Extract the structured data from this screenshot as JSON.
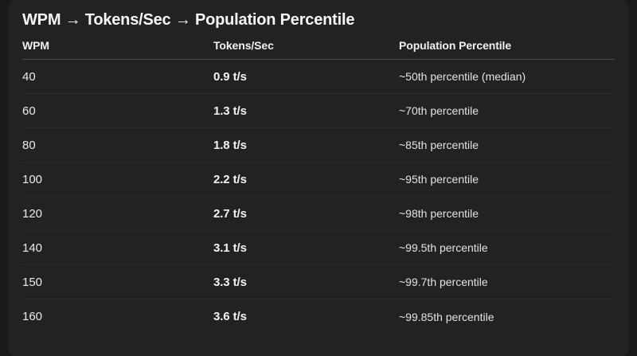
{
  "title": "WPM → Tokens/Sec → Population Percentile",
  "chart_data": {
    "type": "table",
    "title": "WPM → Tokens/Sec → Population Percentile",
    "columns": [
      "WPM",
      "Tokens/Sec",
      "Population Percentile"
    ],
    "rows": [
      [
        "40",
        "0.9 t/s",
        "~50th percentile (median)"
      ],
      [
        "60",
        "1.3 t/s",
        "~70th percentile"
      ],
      [
        "80",
        "1.8 t/s",
        "~85th percentile"
      ],
      [
        "100",
        "2.2 t/s",
        "~95th percentile"
      ],
      [
        "120",
        "2.7 t/s",
        "~98th percentile"
      ],
      [
        "140",
        "3.1 t/s",
        "~99.5th percentile"
      ],
      [
        "150",
        "3.3 t/s",
        "~99.7th percentile"
      ],
      [
        "160",
        "3.6 t/s",
        "~99.85th percentile"
      ]
    ],
    "wpm_values": [
      40,
      60,
      80,
      100,
      120,
      140,
      150,
      160
    ],
    "tokens_per_sec_values": [
      0.9,
      1.3,
      1.8,
      2.2,
      2.7,
      3.1,
      3.3,
      3.6
    ],
    "population_percentile_labels": [
      "~50th percentile (median)",
      "~70th percentile",
      "~85th percentile",
      "~95th percentile",
      "~98th percentile",
      "~99.5th percentile",
      "~99.7th percentile",
      "~99.85th percentile"
    ]
  },
  "colors": {
    "page_bg": "#1a1a1a",
    "card_bg": "#222222",
    "title_text": "#f6f6f6",
    "header_text": "#f0f0f0",
    "cell_text": "#eaeaea",
    "cell_emphasis_text": "#f3f3f3",
    "secondary_text": "#e3e3e3",
    "header_divider": "#4d4d4d",
    "row_divider": "#2e2e2e"
  }
}
